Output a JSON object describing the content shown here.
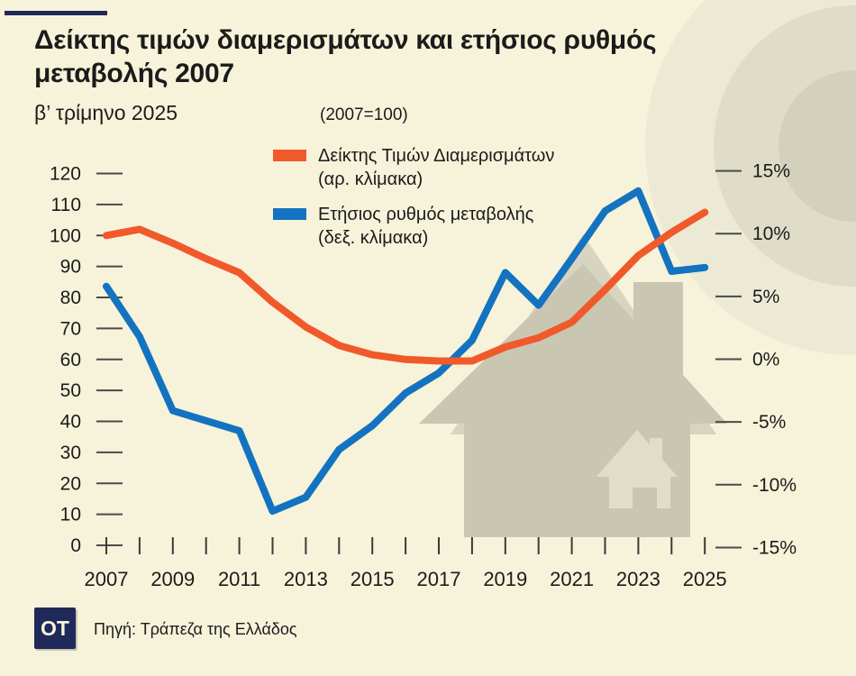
{
  "header": {
    "accent_bar_color": "#20295a",
    "title_lines": [
      "Δείκτης τιμών διαμερισμάτων και ετήσιος ρυθμός",
      "μεταβολής 2007"
    ],
    "subtitle": "β’ τρίμηνο 2025",
    "scale_note": "(2007=100)"
  },
  "legend": {
    "items": [
      {
        "label": "Δείκτης Τιμών Διαμερισμάτων",
        "sublabel": "(αρ. κλίμακα)",
        "color": "#f1592a"
      },
      {
        "label": "Ετήσιος ρυθμός μεταβολής",
        "sublabel": "(δεξ. κλίμακα)",
        "color": "#1373c0"
      }
    ]
  },
  "chart_data": {
    "type": "line",
    "title": "Δείκτης τιμών διαμερισμάτων και ετήσιος ρυθμός μεταβολής 2007",
    "subtitle": "β’ τρίμηνο 2025",
    "note": "(2007=100)",
    "grid": false,
    "legend_position": "top-left-inside",
    "x": [
      2007,
      2008,
      2009,
      2010,
      2011,
      2012,
      2013,
      2014,
      2015,
      2016,
      2017,
      2018,
      2019,
      2020,
      2021,
      2022,
      2023,
      2024,
      2025
    ],
    "x_axis": {
      "start": 2007,
      "end": 2025,
      "label_every": 2
    },
    "left_axis": {
      "min": 0,
      "max": 120,
      "step": 10,
      "label": "Δείκτης Τιμών Διαμερισμάτων (αρ. κλίμακα)"
    },
    "right_axis": {
      "min": -15,
      "max": 15,
      "step": 5,
      "suffix": "%",
      "label": "Ετήσιος ρυθμός μεταβολής (δεξ. κλίμακα)"
    },
    "series": [
      {
        "name": "Δείκτης Τιμών Διαμερισμάτων",
        "axis": "left",
        "color": "#f1592a",
        "values": [
          100,
          102,
          97.5,
          92.5,
          88,
          78.5,
          70.5,
          64.5,
          61.5,
          60,
          59.5,
          59.5,
          64,
          67,
          72,
          82.5,
          93.5,
          101,
          107.5
        ]
      },
      {
        "name": "Ετήσιος ρυθμός μεταβολής",
        "axis": "right",
        "color": "#1373c0",
        "values": [
          5.8,
          1.8,
          -4.1,
          -4.9,
          -5.7,
          -12.1,
          -11.0,
          -7.2,
          -5.3,
          -2.7,
          -1.1,
          1.5,
          6.9,
          4.3,
          8.0,
          11.8,
          13.4,
          7.0,
          7.3
        ]
      }
    ]
  },
  "footer": {
    "logo_text": "OT",
    "logo_bg": "#20295a",
    "source": "Πηγή: Τράπεζα της Ελλάδος"
  }
}
